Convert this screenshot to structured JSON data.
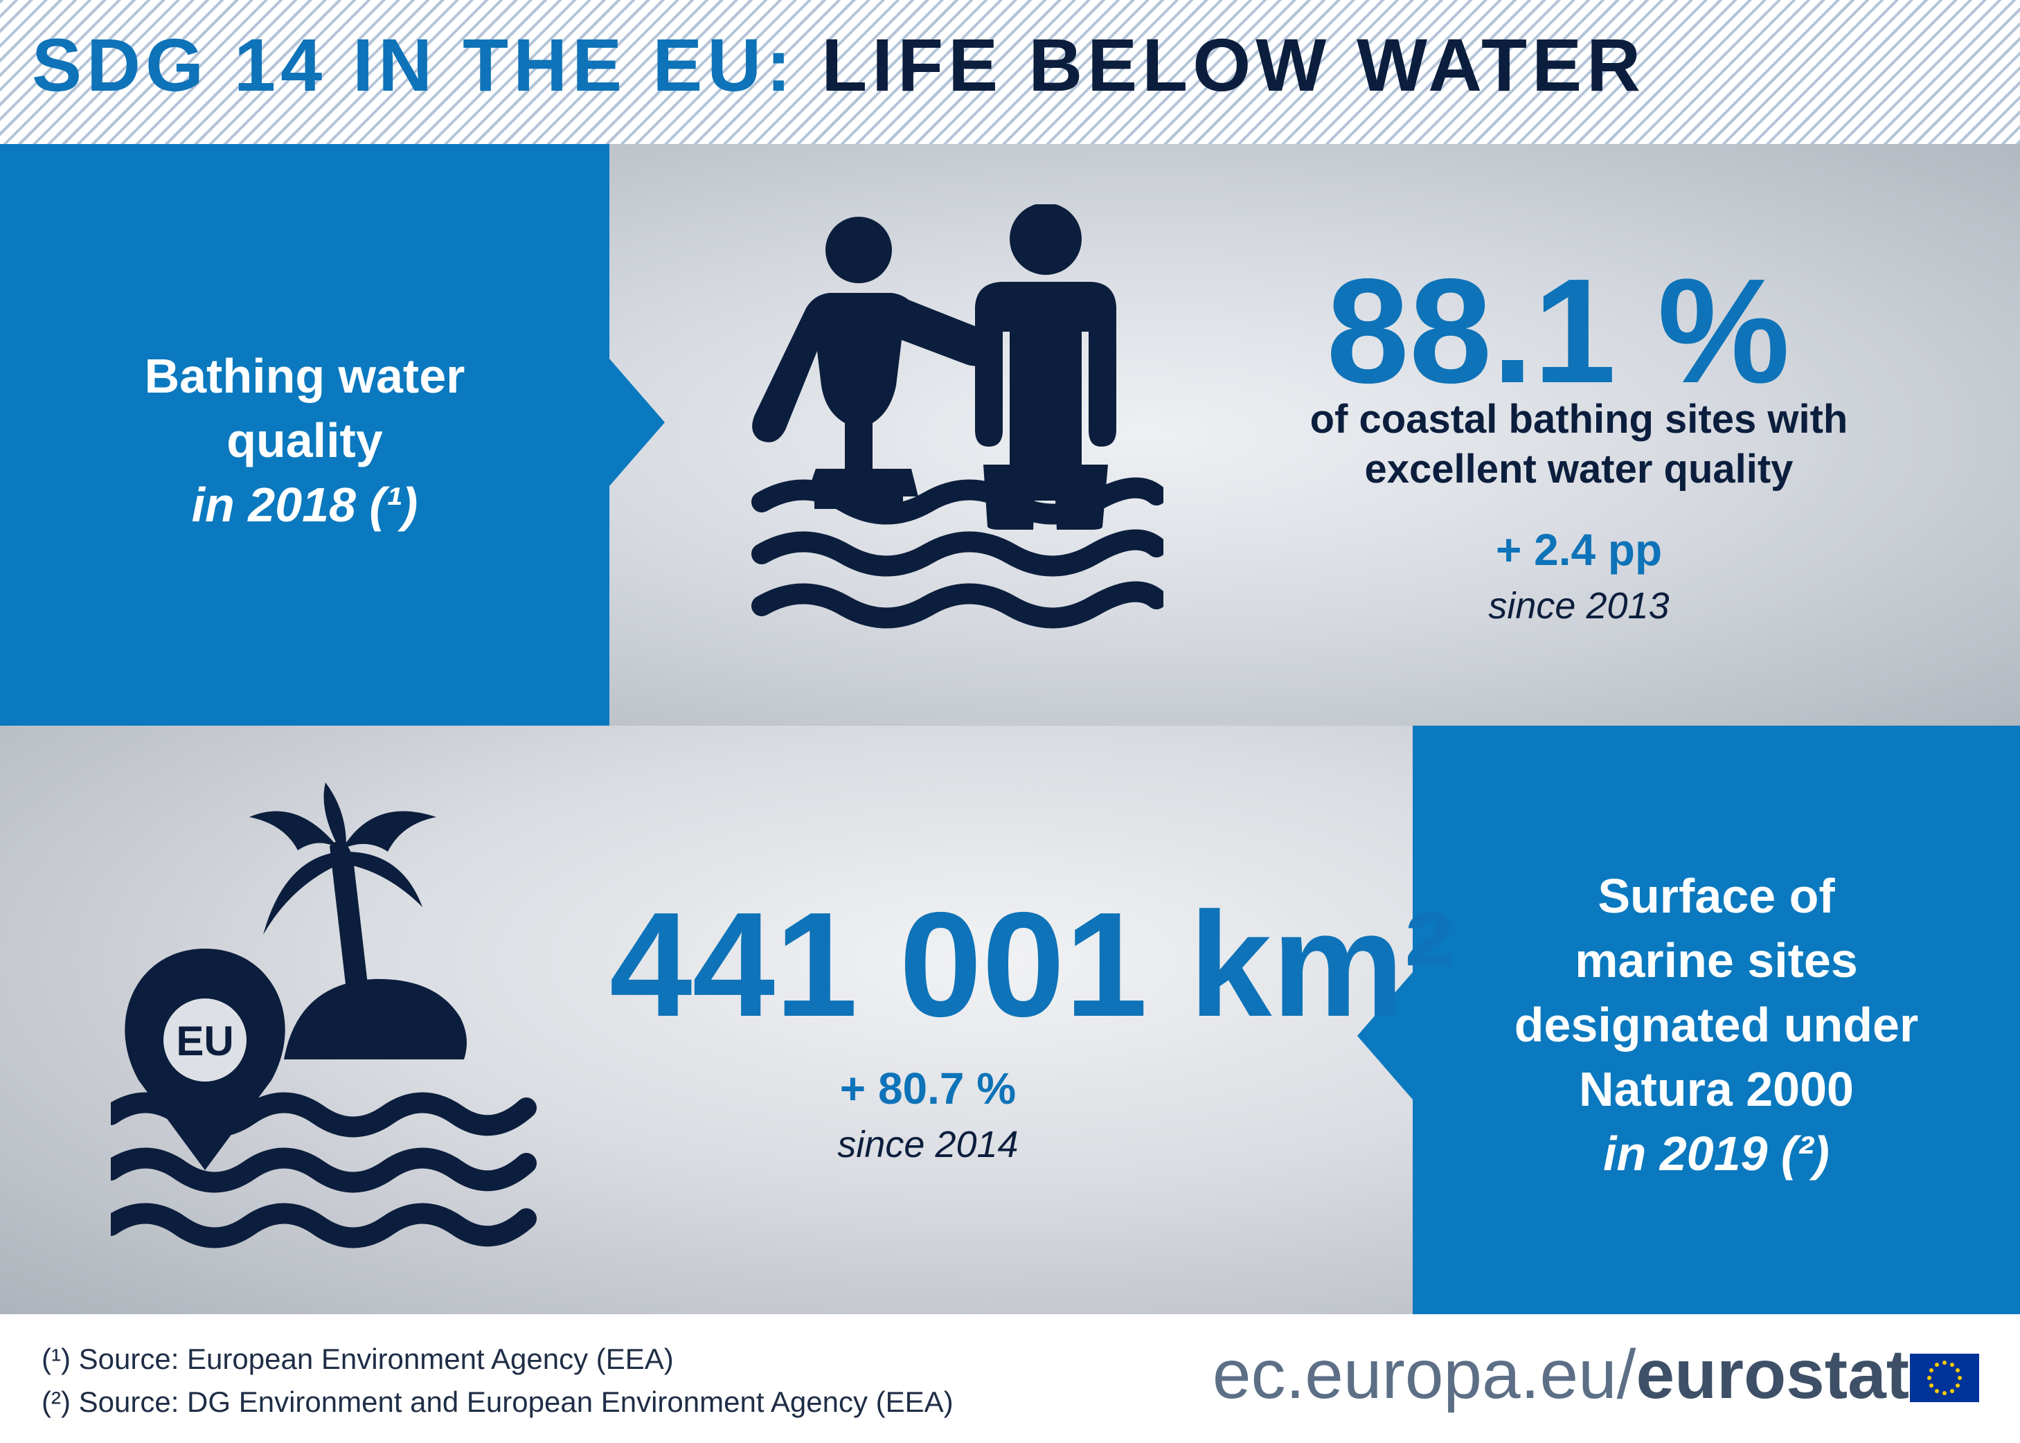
{
  "header": {
    "title_part1": "SDG 14 IN THE EU:",
    "title_part2": "LIFE BELOW WATER"
  },
  "bathing": {
    "label_line1": "Bathing water",
    "label_line2": "quality",
    "label_line3": "in 2018 (¹)",
    "value": "88.1 %",
    "description_line1": "of coastal bathing sites with",
    "description_line2": "excellent water quality",
    "change": "+ 2.4 pp",
    "since": "since 2013",
    "icon": "bathing-people-icon"
  },
  "marine": {
    "label_line1": "Surface of",
    "label_line2": "marine sites",
    "label_line3": "designated under",
    "label_line4": "Natura 2000",
    "label_line5": "in 2019 (²)",
    "value": "441 001 km²",
    "change": "+ 80.7 %",
    "since": "since 2014",
    "icon": "island-location-icon",
    "pin_label": "EU"
  },
  "footer": {
    "note1": "(¹) Source: European Environment Agency (EEA)",
    "note2": "(²) Source: DG Environment and European Environment Agency (EEA)",
    "url_part1": "ec.europa.eu/",
    "url_part2": "eurostat"
  },
  "colors": {
    "accent_blue": "#0b79bf",
    "title_blue": "#0e73b8",
    "navy": "#0c1e3d"
  }
}
